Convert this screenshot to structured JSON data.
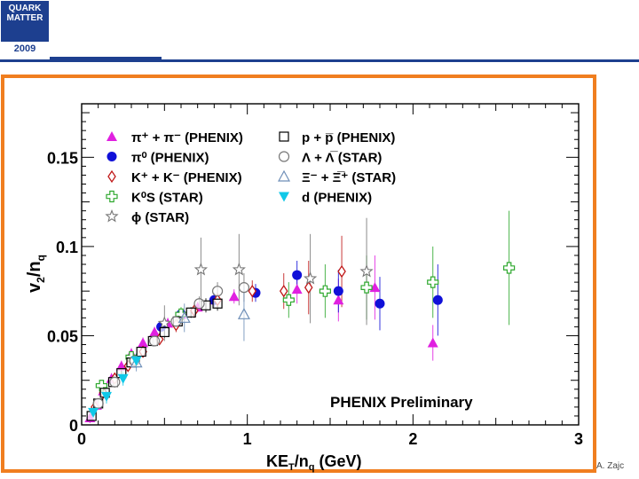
{
  "header": {
    "logo_line1": "QUARK",
    "logo_line2": "MATTER",
    "logo_year": "2009"
  },
  "footer": {
    "author": "A. Zajc"
  },
  "colors": {
    "frame": "#f07e1f",
    "header": "#1d3f8f",
    "magenta": "#e020e0",
    "blue": "#1010d8",
    "red": "#c01818",
    "green": "#2ea82e",
    "grey": "#777777",
    "cyan": "#10c8e8"
  },
  "chart_data": {
    "type": "scatter",
    "title": "",
    "annotation": "PHENIX Preliminary",
    "xlabel": "KE_T/n_q (GeV)",
    "ylabel": "v_2/n_q",
    "xlim": [
      0,
      3
    ],
    "ylim": [
      0,
      0.18
    ],
    "x_ticks": [
      "0",
      "1",
      "2",
      "3"
    ],
    "y_ticks": [
      "0",
      "0.05",
      "0.1",
      "0.15"
    ],
    "series": [
      {
        "name": "pi+ + pi- (PHENIX)",
        "marker": "triangle-up",
        "color": "magenta",
        "x": [
          0.05,
          0.09,
          0.13,
          0.18,
          0.24,
          0.3,
          0.37,
          0.44,
          0.52,
          0.6,
          0.7,
          0.8,
          0.92,
          1.3,
          1.55,
          1.77,
          2.12
        ],
        "y": [
          0.004,
          0.011,
          0.019,
          0.026,
          0.033,
          0.04,
          0.046,
          0.052,
          0.057,
          0.062,
          0.066,
          0.07,
          0.072,
          0.076,
          0.07,
          0.077,
          0.046
        ],
        "err": [
          0.003,
          0.003,
          0.003,
          0.003,
          0.003,
          0.003,
          0.003,
          0.003,
          0.003,
          0.003,
          0.003,
          0.003,
          0.004,
          0.008,
          0.012,
          0.018,
          0.01
        ]
      },
      {
        "name": "pi0 (PHENIX)",
        "marker": "circle",
        "color": "blue",
        "x": [
          0.48,
          0.6,
          0.8,
          1.05,
          1.3,
          1.55,
          1.8,
          2.15
        ],
        "y": [
          0.055,
          0.062,
          0.07,
          0.074,
          0.084,
          0.075,
          0.068,
          0.07
        ],
        "err": [
          0.003,
          0.003,
          0.004,
          0.005,
          0.008,
          0.012,
          0.015,
          0.02
        ]
      },
      {
        "name": "K+ + K- (PHENIX)",
        "marker": "diamond-open",
        "color": "red",
        "x": [
          0.08,
          0.13,
          0.2,
          0.28,
          0.37,
          0.47,
          0.57,
          0.68,
          0.82,
          1.03,
          1.22,
          1.37,
          1.57
        ],
        "y": [
          0.01,
          0.018,
          0.026,
          0.033,
          0.041,
          0.048,
          0.056,
          0.064,
          0.07,
          0.075,
          0.075,
          0.077,
          0.086
        ],
        "err": [
          0.003,
          0.003,
          0.003,
          0.003,
          0.003,
          0.003,
          0.004,
          0.004,
          0.004,
          0.006,
          0.01,
          0.015,
          0.02
        ]
      },
      {
        "name": "Ks0 (STAR)",
        "marker": "cross-open",
        "color": "green",
        "x": [
          0.12,
          0.3,
          0.6,
          1.25,
          1.47,
          1.72,
          2.12,
          2.58
        ],
        "y": [
          0.022,
          0.038,
          0.062,
          0.07,
          0.075,
          0.077,
          0.08,
          0.088
        ],
        "err": [
          0.002,
          0.002,
          0.004,
          0.01,
          0.015,
          0.018,
          0.02,
          0.032
        ]
      },
      {
        "name": "phi (STAR)",
        "marker": "star-open",
        "color": "grey",
        "x": [
          0.5,
          0.72,
          0.95,
          1.38,
          1.72
        ],
        "y": [
          0.057,
          0.087,
          0.087,
          0.082,
          0.086
        ],
        "err": [
          0.01,
          0.018,
          0.02,
          0.025,
          0.03
        ]
      },
      {
        "name": "p + pbar (PHENIX)",
        "marker": "square-open",
        "color": "black",
        "x": [
          0.06,
          0.1,
          0.14,
          0.19,
          0.24,
          0.3,
          0.36,
          0.43,
          0.5,
          0.58,
          0.66,
          0.75,
          0.82
        ],
        "y": [
          0.005,
          0.012,
          0.018,
          0.024,
          0.029,
          0.035,
          0.041,
          0.047,
          0.052,
          0.058,
          0.063,
          0.067,
          0.068
        ],
        "err": [
          0.002,
          0.002,
          0.002,
          0.002,
          0.002,
          0.002,
          0.002,
          0.003,
          0.003,
          0.003,
          0.003,
          0.004,
          0.004
        ]
      },
      {
        "name": "Lambda + Lambdabar (STAR)",
        "marker": "circle-open",
        "color": "grey",
        "x": [
          0.1,
          0.2,
          0.32,
          0.44,
          0.57,
          0.71,
          0.82,
          0.98
        ],
        "y": [
          0.012,
          0.024,
          0.036,
          0.047,
          0.058,
          0.068,
          0.075,
          0.077
        ],
        "err": [
          0.002,
          0.002,
          0.002,
          0.003,
          0.003,
          0.004,
          0.005,
          0.008
        ]
      },
      {
        "name": "Xi- + Xibar+ (STAR)",
        "marker": "triangle-open",
        "color": "#6f8fb8",
        "x": [
          0.33,
          0.62,
          0.98
        ],
        "y": [
          0.035,
          0.06,
          0.062
        ],
        "err": [
          0.005,
          0.008,
          0.015
        ]
      },
      {
        "name": "d (PHENIX)",
        "marker": "triangle-down",
        "color": "cyan",
        "x": [
          0.07,
          0.15,
          0.25,
          0.33
        ],
        "y": [
          0.007,
          0.016,
          0.026,
          0.036
        ],
        "err": [
          0.004,
          0.004,
          0.004,
          0.004
        ]
      }
    ],
    "legend": {
      "placement": "top-left",
      "entries": [
        {
          "label": "π⁺ + π⁻ (PHENIX)",
          "marker": "triangle-up",
          "color": "magenta"
        },
        {
          "label": "π⁰ (PHENIX)",
          "marker": "circle",
          "color": "blue"
        },
        {
          "label": "K⁺ + K⁻ (PHENIX)",
          "marker": "diamond-open",
          "color": "red"
        },
        {
          "label": "K⁰S (STAR)",
          "marker": "cross-open",
          "color": "green"
        },
        {
          "label": "ϕ (STAR)",
          "marker": "star-open",
          "color": "grey"
        },
        {
          "label": "p + p̅ (PHENIX)",
          "marker": "square-open",
          "color": "black"
        },
        {
          "label": "Λ + Λ̅ (STAR)",
          "marker": "circle-open",
          "color": "grey"
        },
        {
          "label": "Ξ⁻ + Ξ̅⁺ (STAR)",
          "marker": "triangle-open",
          "color": "#6f8fb8"
        },
        {
          "label": "d (PHENIX)",
          "marker": "triangle-down",
          "color": "cyan"
        }
      ]
    }
  }
}
